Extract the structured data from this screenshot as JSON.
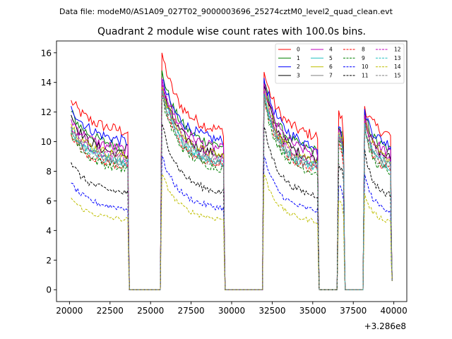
{
  "chart_data": {
    "type": "line",
    "suptitle": "Data file: modeM0/AS1A09_027T02_9000003696_25274cztM0_level2_quad_clean.evt",
    "title": "Quadrant 2 module wise count rates with 100.0s bins.",
    "xlabel": "",
    "ylabel": "",
    "x_offset_label": "+3.286e8",
    "xlim": [
      19200,
      40800
    ],
    "ylim": [
      -0.8,
      16.8
    ],
    "xticks": [
      20000,
      22500,
      25000,
      27500,
      30000,
      32500,
      35000,
      37500,
      40000
    ],
    "yticks": [
      0,
      2,
      4,
      6,
      8,
      10,
      12,
      14,
      16
    ],
    "grid": false,
    "legend": {
      "placement": "top-right",
      "columns": 4,
      "entries": [
        "0",
        "1",
        "2",
        "3",
        "4",
        "5",
        "6",
        "7",
        "8",
        "9",
        "10",
        "11",
        "12",
        "13",
        "14",
        "15"
      ]
    },
    "segments": [
      {
        "start": 20100,
        "end": 23600
      },
      {
        "start": 25700,
        "end": 29500
      },
      {
        "start": 32000,
        "end": 35300
      },
      {
        "start": 36600,
        "end": 36900
      },
      {
        "start": 38200,
        "end": 39800
      }
    ],
    "gaps_value": 0,
    "series": [
      {
        "name": "0",
        "color": "#ff0000",
        "style": "solid",
        "level": 11.3,
        "start_peak": 12.8,
        "peak2": 16.0,
        "peak3": 14.7,
        "peak4": 12.1,
        "peak5": 12.4
      },
      {
        "name": "1",
        "color": "#008000",
        "style": "solid",
        "level": 10.2,
        "start_peak": 12.0,
        "peak2": 14.8,
        "peak3": 14.0,
        "peak4": 11.0,
        "peak5": 12.0
      },
      {
        "name": "2",
        "color": "#0000ff",
        "style": "solid",
        "level": 10.6,
        "start_peak": 12.4,
        "peak2": 14.2,
        "peak3": 14.3,
        "peak4": 11.0,
        "peak5": 12.2
      },
      {
        "name": "3",
        "color": "#000000",
        "style": "solid",
        "level": 9.6,
        "start_peak": 11.8,
        "peak2": 13.8,
        "peak3": 13.8,
        "peak4": 10.9,
        "peak5": 11.8
      },
      {
        "name": "4",
        "color": "#bf00bf",
        "style": "solid",
        "level": 10.0,
        "start_peak": 11.5,
        "peak2": 14.3,
        "peak3": 13.9,
        "peak4": 10.8,
        "peak5": 11.8
      },
      {
        "name": "5",
        "color": "#20c0c0",
        "style": "solid",
        "level": 9.0,
        "start_peak": 10.8,
        "peak2": 13.6,
        "peak3": 13.2,
        "peak4": 10.3,
        "peak5": 11.2
      },
      {
        "name": "6",
        "color": "#bfbf00",
        "style": "solid",
        "level": 9.5,
        "start_peak": 11.2,
        "peak2": 13.8,
        "peak3": 13.5,
        "peak4": 10.6,
        "peak5": 11.5
      },
      {
        "name": "7",
        "color": "#808080",
        "style": "solid",
        "level": 9.2,
        "start_peak": 11.0,
        "peak2": 13.5,
        "peak3": 13.3,
        "peak4": 10.5,
        "peak5": 11.3
      },
      {
        "name": "8",
        "color": "#ff0000",
        "style": "dashed",
        "level": 8.8,
        "start_peak": 10.5,
        "peak2": 13.2,
        "peak3": 13.0,
        "peak4": 10.0,
        "peak5": 11.0
      },
      {
        "name": "9",
        "color": "#008000",
        "style": "dashed",
        "level": 8.6,
        "start_peak": 10.6,
        "peak2": 13.0,
        "peak3": 12.8,
        "peak4": 10.1,
        "peak5": 10.8
      },
      {
        "name": "10",
        "color": "#0000ff",
        "style": "dashed",
        "level": 5.8,
        "start_peak": 7.2,
        "peak2": 9.0,
        "peak3": 9.0,
        "peak4": 7.0,
        "peak5": 7.8
      },
      {
        "name": "11",
        "color": "#000000",
        "style": "dashed",
        "level": 6.9,
        "start_peak": 8.6,
        "peak2": 11.2,
        "peak3": 11.0,
        "peak4": 8.5,
        "peak5": 9.5
      },
      {
        "name": "12",
        "color": "#bf00bf",
        "style": "dashed",
        "level": 9.4,
        "start_peak": 11.0,
        "peak2": 14.0,
        "peak3": 13.6,
        "peak4": 10.5,
        "peak5": 11.6
      },
      {
        "name": "13",
        "color": "#20c0c0",
        "style": "dashed",
        "level": 9.1,
        "start_peak": 10.9,
        "peak2": 13.4,
        "peak3": 13.2,
        "peak4": 10.4,
        "peak5": 11.2
      },
      {
        "name": "14",
        "color": "#bfbf00",
        "style": "dashed",
        "level": 5.0,
        "start_peak": 6.2,
        "peak2": 7.8,
        "peak3": 7.8,
        "peak4": 6.0,
        "peak5": 6.5
      },
      {
        "name": "15",
        "color": "#808080",
        "style": "dashed",
        "level": 8.9,
        "start_peak": 10.7,
        "peak2": 13.3,
        "peak3": 13.0,
        "peak4": 10.2,
        "peak5": 11.0
      }
    ]
  }
}
